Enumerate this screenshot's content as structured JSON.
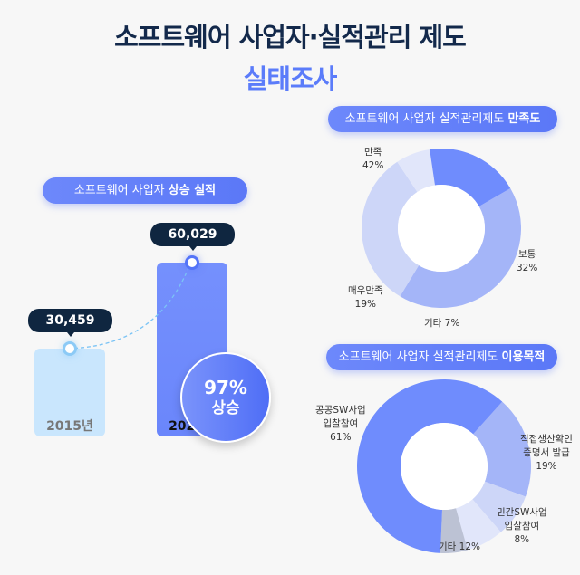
{
  "title": {
    "line1": "소프트웨어 사업자·실적관리 제도",
    "line2": "실태조사"
  },
  "growth": {
    "header_prefix": "소프트웨어 사업자 ",
    "header_bold": "상승 실적",
    "change_value": "97%",
    "change_label": "상승"
  },
  "satisfaction": {
    "header_prefix": "소프트웨어 사업자 실적관리제도 ",
    "header_bold": "만족도"
  },
  "purpose": {
    "header_prefix": "소프트웨어 사업자 실적관리제도 ",
    "header_bold": "이용목적"
  },
  "chart_data": [
    {
      "type": "bar",
      "categories": [
        "2015년",
        "2025년"
      ],
      "values": [
        30459,
        60029
      ],
      "data_labels": [
        "30,459",
        "60,029"
      ],
      "colors": [
        "#c9e6fd",
        "#6f8cfd"
      ]
    },
    {
      "type": "pie",
      "donut": true,
      "slices": [
        {
          "label": "만족",
          "value": 42,
          "text": "42%",
          "color": "#a4b5f8"
        },
        {
          "label": "보통",
          "value": 32,
          "text": "32%",
          "color": "#cdd6f8"
        },
        {
          "label": "기타",
          "value": 7,
          "text": "7%",
          "color": "#e1e6fa"
        },
        {
          "label": "매우만족",
          "value": 19,
          "text": "19%",
          "color": "#6f8cfd"
        }
      ]
    },
    {
      "type": "pie",
      "donut": true,
      "slices": [
        {
          "label": "직접생산확인 증명서 발급",
          "lines": [
            "직접생산확인",
            "증명서 발급"
          ],
          "value": 19,
          "text": "19%",
          "color": "#a4b5f8"
        },
        {
          "label": "민간SW사업 입찰참여",
          "lines": [
            "민간SW사업",
            "입찰참여"
          ],
          "value": 8,
          "text": "8%",
          "color": "#cdd6f8"
        },
        {
          "label": "기타",
          "value": 12,
          "text": "12%",
          "color": "#e1e6fa",
          "tail_color": "#bcc2d4"
        },
        {
          "label": "공공SW사업 입찰참여",
          "lines": [
            "공공SW사업",
            "입찰참여"
          ],
          "value": 61,
          "text": "61%",
          "color": "#6f8cfd"
        }
      ]
    }
  ]
}
